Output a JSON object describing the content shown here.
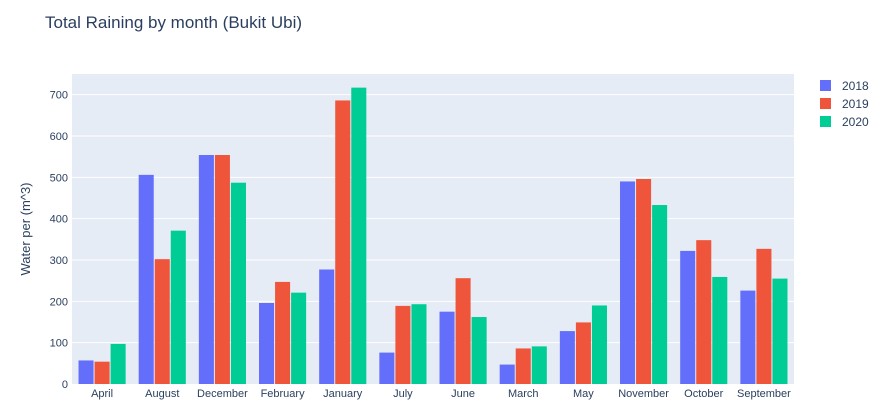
{
  "chart_data": {
    "type": "bar",
    "title": "Total Raining by month (Bukit Ubi)",
    "xlabel": "",
    "ylabel": "Water per (m^3)",
    "ylim": [
      0,
      750
    ],
    "yticks": [
      0,
      100,
      200,
      300,
      400,
      500,
      600,
      700
    ],
    "grid": true,
    "legend": "top-right",
    "categories": [
      "April",
      "August",
      "December",
      "February",
      "January",
      "July",
      "June",
      "March",
      "May",
      "November",
      "October",
      "September"
    ],
    "series": [
      {
        "name": "2018",
        "color": "#636efa",
        "values": [
          57,
          506,
          554,
          196,
          277,
          76,
          175,
          47,
          128,
          490,
          322,
          226
        ]
      },
      {
        "name": "2019",
        "color": "#ef553b",
        "values": [
          54,
          302,
          554,
          247,
          686,
          189,
          256,
          86,
          149,
          496,
          348,
          327
        ]
      },
      {
        "name": "2020",
        "color": "#00cc96",
        "values": [
          97,
          371,
          487,
          221,
          717,
          193,
          162,
          91,
          190,
          433,
          259,
          255
        ]
      }
    ]
  }
}
